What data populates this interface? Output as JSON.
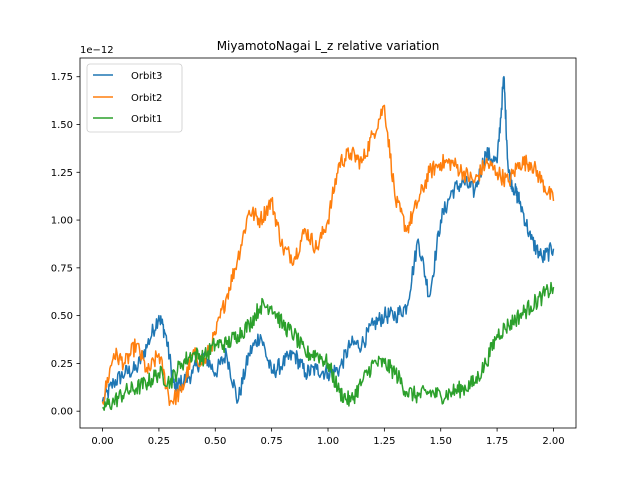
{
  "chart_data": {
    "type": "line",
    "title": "MiyamotoNagai L_z relative variation",
    "xlabel": "",
    "ylabel": "",
    "y_offset_label": "1e−12",
    "xlim": [
      -0.1,
      2.1
    ],
    "ylim": [
      -0.088,
      1.848
    ],
    "x_ticks": [
      0.0,
      0.25,
      0.5,
      0.75,
      1.0,
      1.25,
      1.5,
      1.75,
      2.0
    ],
    "x_tick_labels": [
      "0.00",
      "0.25",
      "0.50",
      "0.75",
      "1.00",
      "1.25",
      "1.50",
      "1.75",
      "2.00"
    ],
    "y_ticks": [
      0.0,
      0.25,
      0.5,
      0.75,
      1.0,
      1.25,
      1.5,
      1.75
    ],
    "y_tick_labels": [
      "0.00",
      "0.25",
      "0.50",
      "0.75",
      "1.00",
      "1.25",
      "1.50",
      "1.75"
    ],
    "grid": false,
    "legend_position": "upper-left",
    "series": [
      {
        "name": "Orbit3",
        "color": "#1f77b4",
        "x": [
          0.0,
          0.05,
          0.1,
          0.15,
          0.2,
          0.25,
          0.28,
          0.32,
          0.35,
          0.4,
          0.45,
          0.5,
          0.55,
          0.6,
          0.65,
          0.7,
          0.75,
          0.8,
          0.85,
          0.9,
          0.95,
          1.0,
          1.05,
          1.1,
          1.15,
          1.2,
          1.25,
          1.3,
          1.35,
          1.4,
          1.45,
          1.5,
          1.55,
          1.6,
          1.65,
          1.7,
          1.75,
          1.78,
          1.8,
          1.83,
          1.85,
          1.9,
          1.95,
          2.0
        ],
        "y": [
          0.05,
          0.15,
          0.2,
          0.22,
          0.35,
          0.5,
          0.4,
          0.12,
          0.15,
          0.2,
          0.3,
          0.2,
          0.3,
          0.05,
          0.3,
          0.4,
          0.2,
          0.25,
          0.3,
          0.2,
          0.22,
          0.2,
          0.22,
          0.35,
          0.35,
          0.45,
          0.5,
          0.5,
          0.55,
          0.9,
          0.6,
          1.0,
          1.15,
          1.2,
          1.15,
          1.35,
          1.3,
          1.75,
          1.25,
          1.15,
          1.1,
          0.9,
          0.8,
          0.85
        ]
      },
      {
        "name": "Orbit2",
        "color": "#ff7f0e",
        "x": [
          0.0,
          0.05,
          0.1,
          0.15,
          0.2,
          0.25,
          0.3,
          0.35,
          0.4,
          0.45,
          0.5,
          0.55,
          0.6,
          0.65,
          0.7,
          0.75,
          0.8,
          0.85,
          0.9,
          0.95,
          1.0,
          1.05,
          1.1,
          1.15,
          1.2,
          1.25,
          1.3,
          1.35,
          1.4,
          1.45,
          1.5,
          1.55,
          1.6,
          1.65,
          1.7,
          1.75,
          1.8,
          1.85,
          1.9,
          1.95,
          2.0
        ],
        "y": [
          0.05,
          0.3,
          0.25,
          0.35,
          0.2,
          0.3,
          0.05,
          0.1,
          0.3,
          0.25,
          0.4,
          0.6,
          0.8,
          1.05,
          1.0,
          1.1,
          0.85,
          0.8,
          0.95,
          0.85,
          1.0,
          1.3,
          1.35,
          1.3,
          1.45,
          1.6,
          1.1,
          0.95,
          1.1,
          1.25,
          1.3,
          1.3,
          1.25,
          1.2,
          1.3,
          1.25,
          1.2,
          1.3,
          1.3,
          1.2,
          1.1
        ]
      },
      {
        "name": "Orbit1",
        "color": "#2ca02c",
        "x": [
          0.0,
          0.05,
          0.1,
          0.15,
          0.2,
          0.25,
          0.3,
          0.35,
          0.4,
          0.45,
          0.5,
          0.55,
          0.6,
          0.65,
          0.7,
          0.75,
          0.8,
          0.85,
          0.9,
          0.95,
          1.0,
          1.05,
          1.1,
          1.15,
          1.2,
          1.25,
          1.3,
          1.35,
          1.4,
          1.45,
          1.5,
          1.55,
          1.6,
          1.65,
          1.7,
          1.75,
          1.8,
          1.85,
          1.9,
          1.95,
          2.0
        ],
        "y": [
          0.02,
          0.05,
          0.1,
          0.12,
          0.15,
          0.2,
          0.15,
          0.25,
          0.3,
          0.28,
          0.35,
          0.35,
          0.4,
          0.45,
          0.55,
          0.55,
          0.45,
          0.4,
          0.3,
          0.3,
          0.25,
          0.1,
          0.05,
          0.15,
          0.25,
          0.25,
          0.2,
          0.1,
          0.08,
          0.1,
          0.08,
          0.1,
          0.12,
          0.15,
          0.25,
          0.4,
          0.45,
          0.5,
          0.55,
          0.6,
          0.65
        ]
      }
    ]
  }
}
